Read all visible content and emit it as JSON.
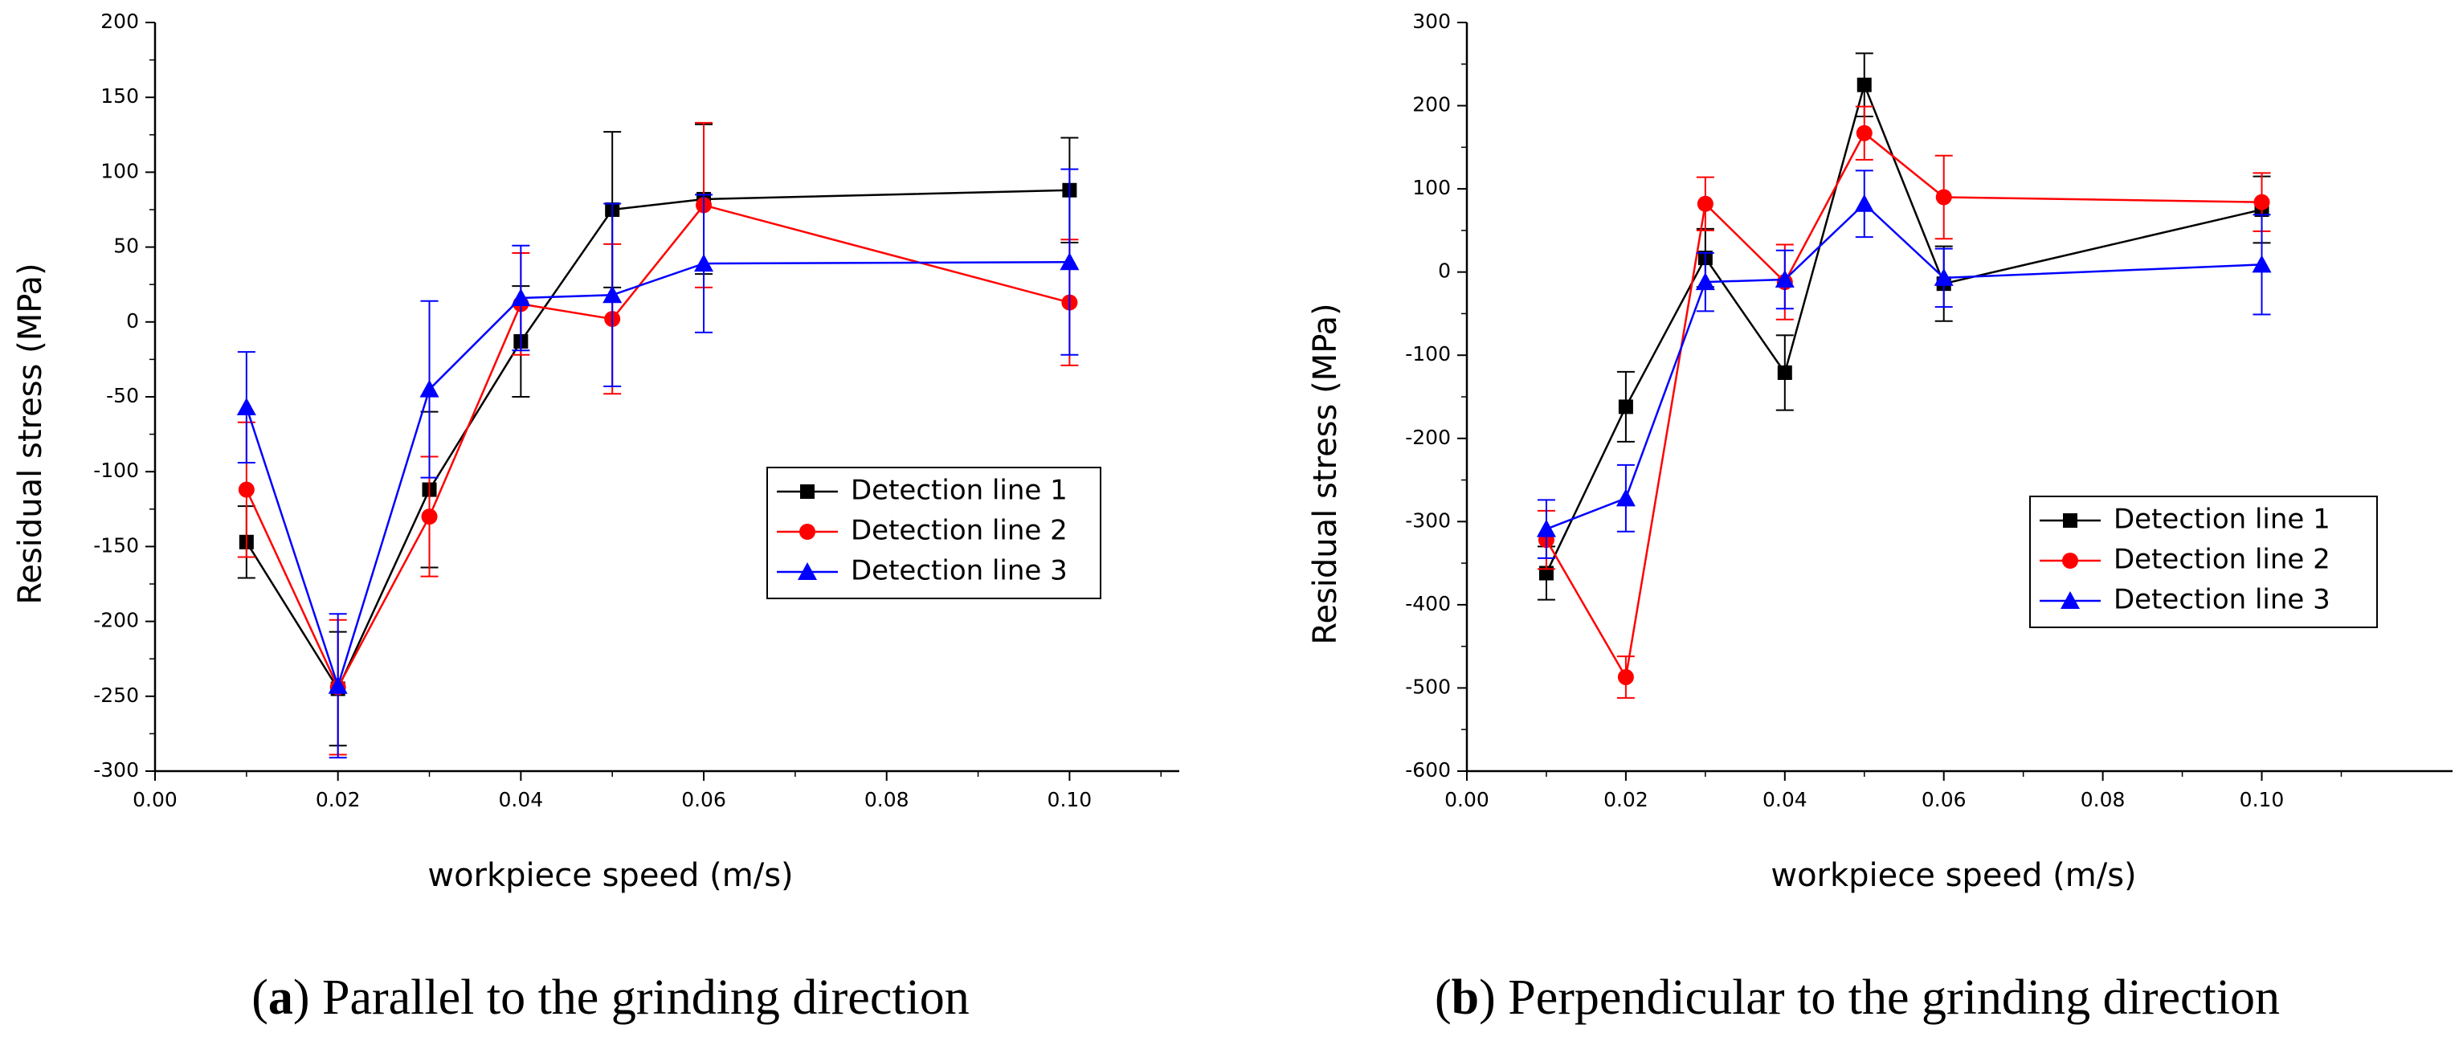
{
  "chart_data": [
    {
      "type": "line",
      "panel_letter": "a",
      "caption": "Parallel to the grinding direction",
      "title": "",
      "xlabel": "workpiece speed (m/s)",
      "ylabel": "Residual stress (MPa)",
      "xlim": [
        0.0,
        0.112
      ],
      "ylim": [
        -300,
        200
      ],
      "xticks": [
        0.0,
        0.02,
        0.04,
        0.06,
        0.08,
        0.1
      ],
      "xtick_labels": [
        "0.00",
        "0.02",
        "0.04",
        "0.06",
        "0.08",
        "0.10"
      ],
      "yticks": [
        200,
        150,
        100,
        50,
        0,
        -50,
        -100,
        -150,
        -200,
        -250,
        -300
      ],
      "ytick_labels": [
        "200",
        "150",
        "100",
        "50",
        "0",
        "-50",
        "-100",
        "-150",
        "-200",
        "-250",
        "-300"
      ],
      "grid": false,
      "legend_position": "center-right",
      "x": [
        0.01,
        0.02,
        0.03,
        0.04,
        0.05,
        0.06,
        0.1
      ],
      "series": [
        {
          "name": "Detection line 1",
          "marker": "square",
          "color": "#000000",
          "values": [
            -147,
            -245,
            -112,
            -13,
            75,
            82,
            88
          ],
          "errors": [
            24,
            38,
            52,
            37,
            52,
            50,
            35
          ]
        },
        {
          "name": "Detection line 2",
          "marker": "circle",
          "color": "#ff0000",
          "values": [
            -112,
            -244,
            -130,
            12,
            2,
            78,
            13
          ],
          "errors": [
            45,
            45,
            40,
            34,
            50,
            55,
            42
          ]
        },
        {
          "name": "Detection line 3",
          "marker": "triangle",
          "color": "#0000ff",
          "values": [
            -57,
            -243,
            -45,
            16,
            18,
            39,
            40
          ],
          "errors": [
            37,
            48,
            59,
            35,
            61,
            46,
            62
          ]
        }
      ]
    },
    {
      "type": "line",
      "panel_letter": "b",
      "caption": "Perpendicular to the grinding direction",
      "title": "",
      "xlabel": "workpiece speed (m/s)",
      "ylabel": "Residual stress (MPa)",
      "xlim": [
        0.0,
        0.124
      ],
      "ylim": [
        -600,
        300
      ],
      "xticks": [
        0.0,
        0.02,
        0.04,
        0.06,
        0.08,
        0.1
      ],
      "xtick_labels": [
        "0.00",
        "0.02",
        "0.04",
        "0.06",
        "0.08",
        "0.10"
      ],
      "yticks": [
        300,
        200,
        100,
        0,
        -100,
        -200,
        -300,
        -400,
        -500,
        -600
      ],
      "ytick_labels": [
        "300",
        "200",
        "100",
        "0",
        "-100",
        "-200",
        "-300",
        "-400",
        "-500",
        "-600"
      ],
      "grid": false,
      "legend_position": "bottom-right",
      "x": [
        0.01,
        0.02,
        0.03,
        0.04,
        0.05,
        0.06,
        0.1
      ],
      "series": [
        {
          "name": "Detection line 1",
          "marker": "square",
          "color": "#000000",
          "values": [
            -362,
            -162,
            17,
            -121,
            225,
            -14,
            75
          ],
          "errors": [
            32,
            42,
            35,
            45,
            38,
            45,
            40
          ]
        },
        {
          "name": "Detection line 2",
          "marker": "circle",
          "color": "#ff0000",
          "values": [
            -322,
            -487,
            82,
            -12,
            167,
            90,
            84
          ],
          "errors": [
            35,
            25,
            32,
            45,
            32,
            50,
            35
          ]
        },
        {
          "name": "Detection line 3",
          "marker": "triangle",
          "color": "#0000ff",
          "values": [
            -309,
            -272,
            -12,
            -9,
            82,
            -7,
            9
          ],
          "errors": [
            35,
            40,
            35,
            35,
            40,
            35,
            60
          ]
        }
      ]
    }
  ]
}
